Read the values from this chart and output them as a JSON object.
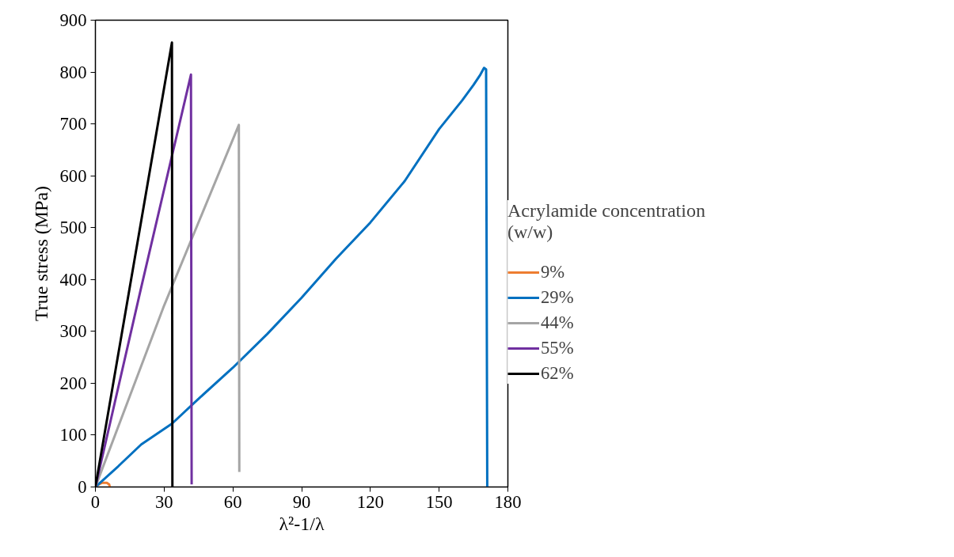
{
  "chart_data": {
    "type": "line",
    "xlabel": "λ²-1/λ",
    "ylabel": "True stress (MPa)",
    "legend_title": "Acrylamide concentration (w/w)",
    "legend": "right",
    "grid": false,
    "xlim": [
      0,
      180
    ],
    "xticks": [
      0,
      30,
      60,
      90,
      120,
      150,
      180
    ],
    "ylim": [
      0,
      900
    ],
    "yticks": [
      0,
      100,
      200,
      300,
      400,
      500,
      600,
      700,
      800,
      900
    ],
    "series": [
      {
        "name": "9%",
        "color": "#ed7d31",
        "x": [
          0,
          1.5,
          3,
          5,
          6,
          6.3
        ],
        "values": [
          0,
          5,
          8,
          8,
          5,
          0
        ]
      },
      {
        "name": "29%",
        "color": "#0070c0",
        "x": [
          0,
          10,
          20,
          33.4,
          45,
          60,
          75,
          90,
          105,
          120,
          135,
          150,
          160,
          165,
          168,
          169.6,
          170.5,
          171
        ],
        "values": [
          0,
          40,
          82,
          122,
          170,
          230,
          295,
          365,
          440,
          510,
          590,
          690,
          745,
          775,
          795,
          808,
          805,
          0
        ]
      },
      {
        "name": "44%",
        "color": "#a5a5a5",
        "x": [
          0,
          30,
          62.6,
          62.8
        ],
        "values": [
          0,
          350,
          698,
          29
        ]
      },
      {
        "name": "55%",
        "color": "#7030a0",
        "x": [
          0,
          20,
          41.7,
          42
        ],
        "values": [
          0,
          385,
          795,
          5
        ]
      },
      {
        "name": "62%",
        "color": "#000000",
        "x": [
          0,
          15,
          33.4,
          33.6
        ],
        "values": [
          0,
          385,
          857,
          0
        ]
      }
    ]
  }
}
